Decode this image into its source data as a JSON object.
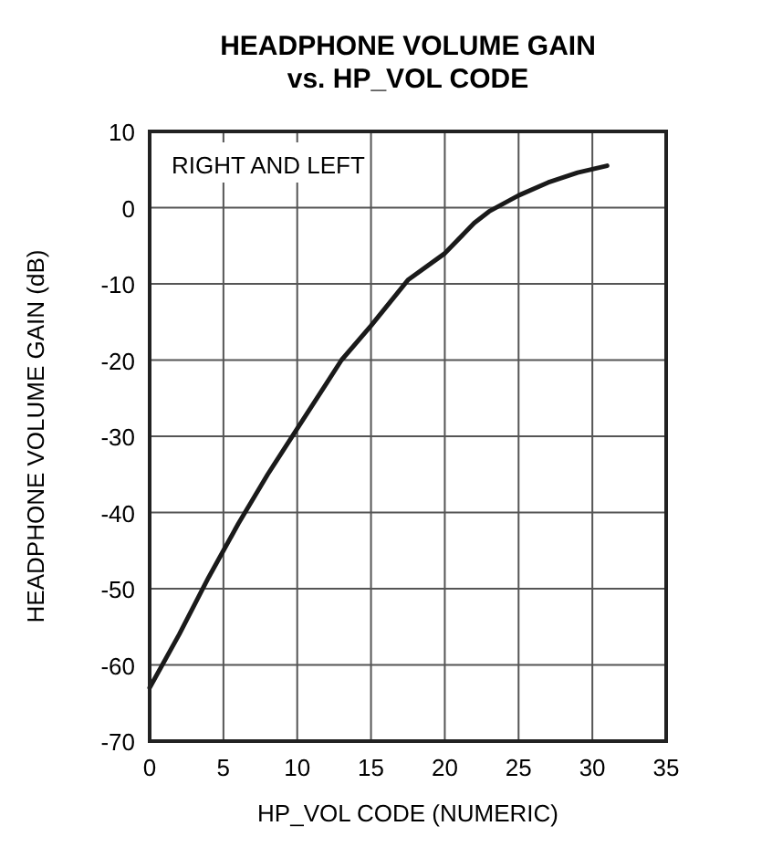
{
  "chart_data": {
    "type": "line",
    "title": "HEADPHONE VOLUME GAIN\nvs. HP_VOL CODE",
    "xlabel": "HP_VOL CODE (NUMERIC)",
    "ylabel": "HEADPHONE VOLUME GAIN (dB)",
    "annotations": [
      "RIGHT AND LEFT"
    ],
    "x": [
      0,
      2,
      4,
      5,
      6,
      8,
      10,
      12,
      13,
      15,
      17.5,
      20,
      22,
      23,
      25,
      27,
      29,
      31
    ],
    "series": [
      {
        "color": "#1a1a1a",
        "values": [
          -63,
          -56,
          -48.5,
          -45,
          -41.5,
          -35,
          -29,
          -23,
          -20,
          -15.5,
          -9.5,
          -6,
          -2,
          -0.5,
          1.6,
          3.3,
          4.6,
          5.5
        ]
      }
    ],
    "xlim": [
      0,
      35
    ],
    "xticks": [
      0,
      5,
      10,
      15,
      20,
      25,
      30,
      35
    ],
    "ylim": [
      -70,
      10
    ],
    "yticks": [
      -70,
      -60,
      -50,
      -40,
      -30,
      -20,
      -10,
      0,
      10
    ],
    "grid": true
  }
}
